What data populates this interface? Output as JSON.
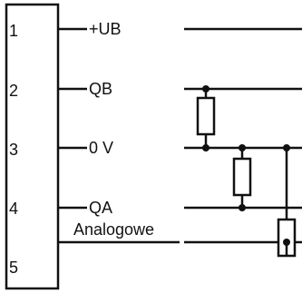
{
  "pins": [
    {
      "number": "1",
      "signal": "+UB"
    },
    {
      "number": "2",
      "signal": "QB"
    },
    {
      "number": "3",
      "signal": "0 V"
    },
    {
      "number": "4",
      "signal": "QA"
    },
    {
      "number": "5",
      "signal": "Analogowe"
    }
  ],
  "colors": {
    "line": "#111111",
    "background": "#ffffff"
  }
}
